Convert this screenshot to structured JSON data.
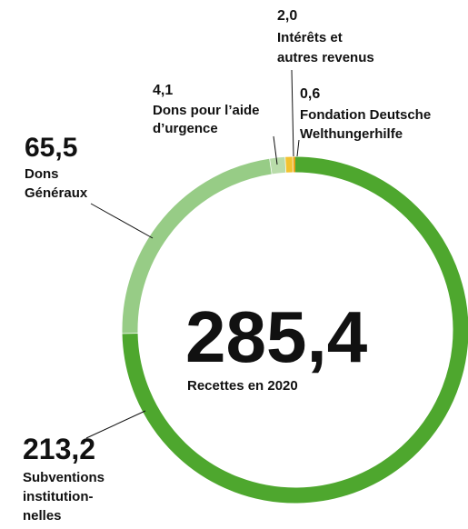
{
  "chart_data": {
    "type": "donut",
    "categories": [
      [
        "Subventions",
        "institution-",
        "nelles"
      ],
      [
        "Dons",
        "Généraux"
      ],
      [
        "Dons pour l’aide",
        "d’urgence"
      ],
      [
        "Intérêts et",
        "autres revenus"
      ],
      [
        "Fondation Deutsche",
        "Welthungerhilfe"
      ]
    ],
    "values": [
      213.2,
      65.5,
      4.1,
      2.0,
      0.6
    ],
    "value_labels": [
      "213,2",
      "65,5",
      "4,1",
      "2,0",
      "0,6"
    ],
    "colors": [
      "#4ea72e",
      "#97cc86",
      "#b9dcaa",
      "#f2c230",
      "#e8a317"
    ],
    "center": {
      "value": 285.4,
      "label": "285,4"
    },
    "center_text": "Recettes en 2020"
  }
}
